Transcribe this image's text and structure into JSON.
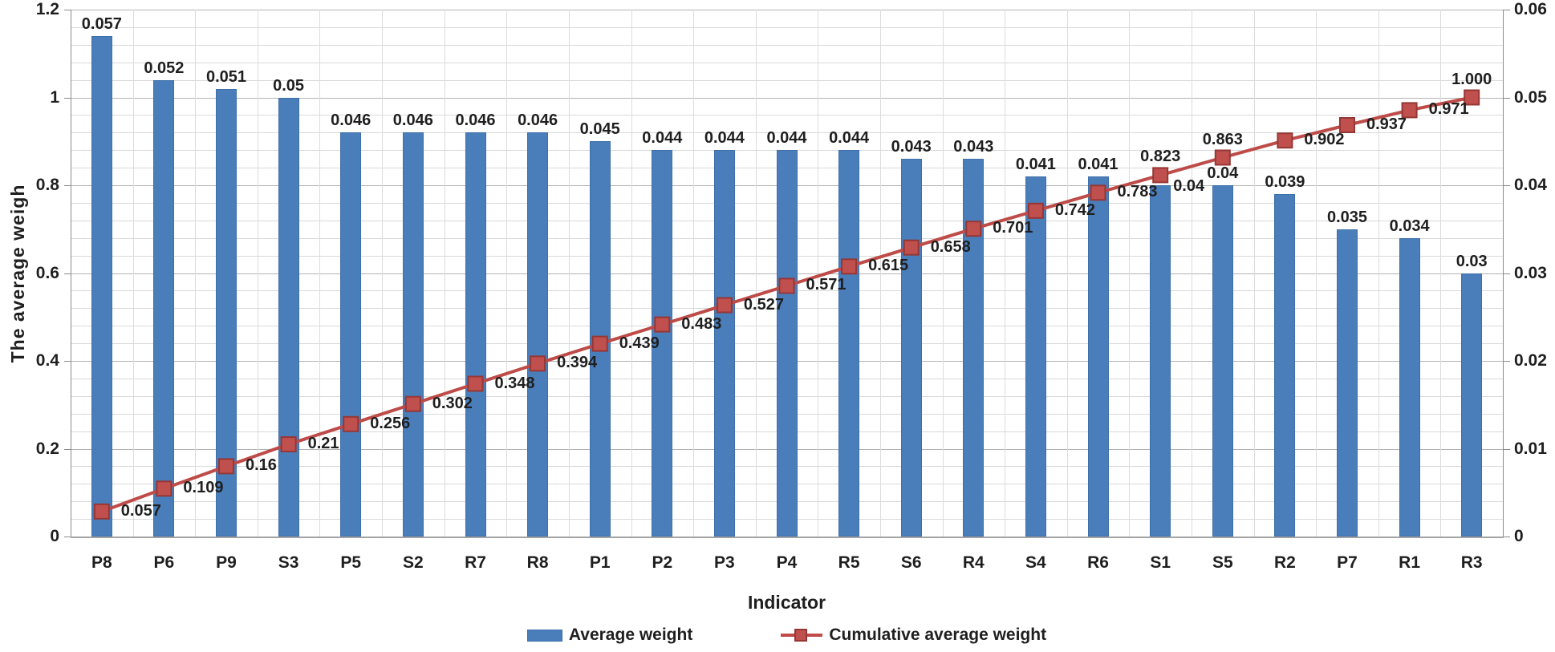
{
  "chart_data": {
    "type": "bar",
    "subtype": "pareto-combo-bar-line",
    "title": "",
    "xlabel": "Indicator",
    "ylabel_left": "The average weigh",
    "categories": [
      "P8",
      "P6",
      "P9",
      "S3",
      "P5",
      "S2",
      "R7",
      "R8",
      "P1",
      "P2",
      "P3",
      "P4",
      "R5",
      "S6",
      "R4",
      "S4",
      "R6",
      "S1",
      "S5",
      "R2",
      "P7",
      "R1",
      "R3"
    ],
    "series": [
      {
        "name": "Average weight",
        "type": "bar",
        "axis": "right",
        "color": "#4a7ebb",
        "values": [
          0.057,
          0.052,
          0.051,
          0.05,
          0.046,
          0.046,
          0.046,
          0.046,
          0.045,
          0.044,
          0.044,
          0.044,
          0.044,
          0.043,
          0.043,
          0.041,
          0.041,
          0.04,
          0.04,
          0.039,
          0.035,
          0.034,
          0.03
        ],
        "labels": [
          "0.057",
          "0.052",
          "0.051",
          "0.05",
          "0.046",
          "0.046",
          "0.046",
          "0.046",
          "0.045",
          "0.044",
          "0.044",
          "0.044",
          "0.044",
          "0.043",
          "0.043",
          "0.041",
          "0.041",
          "0.04",
          "0.04",
          "0.039",
          "0.035",
          "0.034",
          "0.03"
        ]
      },
      {
        "name": "Cumulative average weight",
        "type": "line",
        "axis": "left",
        "color": "#be4b48",
        "marker_color": "#c0504d",
        "marker_border": "#953735",
        "values": [
          0.057,
          0.109,
          0.16,
          0.21,
          0.256,
          0.302,
          0.348,
          0.394,
          0.439,
          0.483,
          0.527,
          0.571,
          0.615,
          0.658,
          0.701,
          0.742,
          0.783,
          0.823,
          0.863,
          0.902,
          0.937,
          0.971,
          1.0
        ],
        "labels": [
          "0.057",
          "0.109",
          "0.16",
          "0.21",
          "0.256",
          "0.302",
          "0.348",
          "0.394",
          "0.439",
          "0.483",
          "0.527",
          "0.571",
          "0.615",
          "0.658",
          "0.701",
          "0.742",
          "0.783",
          "0.823",
          "0.863",
          "0.902",
          "0.937",
          "0.971",
          "1.000"
        ]
      }
    ],
    "left_axis": {
      "min": 0,
      "max": 1.2,
      "ticks": [
        "1.2",
        "1",
        "0.8",
        "0.6",
        "0.4",
        "0.2",
        "0"
      ]
    },
    "right_axis": {
      "min": 0,
      "max": 0.06,
      "ticks": [
        "0.06",
        "0.05",
        "0.04",
        "0.03",
        "0.02",
        "0.01",
        "0"
      ]
    },
    "grid": {
      "horizontal_minor_step": 0.04,
      "horizontal_major_step": 0.2,
      "vertical_category_lines": true
    },
    "legend_position": "bottom",
    "line_labels_above_indices": [
      17,
      18,
      22
    ],
    "bar_labels_beside_indices": [
      17
    ]
  },
  "legend": {
    "items": [
      {
        "label": "Average weight",
        "swatch": "bar",
        "color": "#4a7ebb"
      },
      {
        "label": "Cumulative average weight",
        "swatch": "line-marker",
        "color": "#be4b48"
      }
    ]
  },
  "colors": {
    "bar_fill": "#4a7ebb",
    "bar_border": "#3e6fa8",
    "line": "#be4b48",
    "marker_fill": "#c0504d",
    "marker_border": "#953735",
    "grid_minor": "#d9d9d9",
    "grid_major": "#b3b3b3",
    "axis_line": "#8c8c8c",
    "text": "#1f1f1f"
  }
}
